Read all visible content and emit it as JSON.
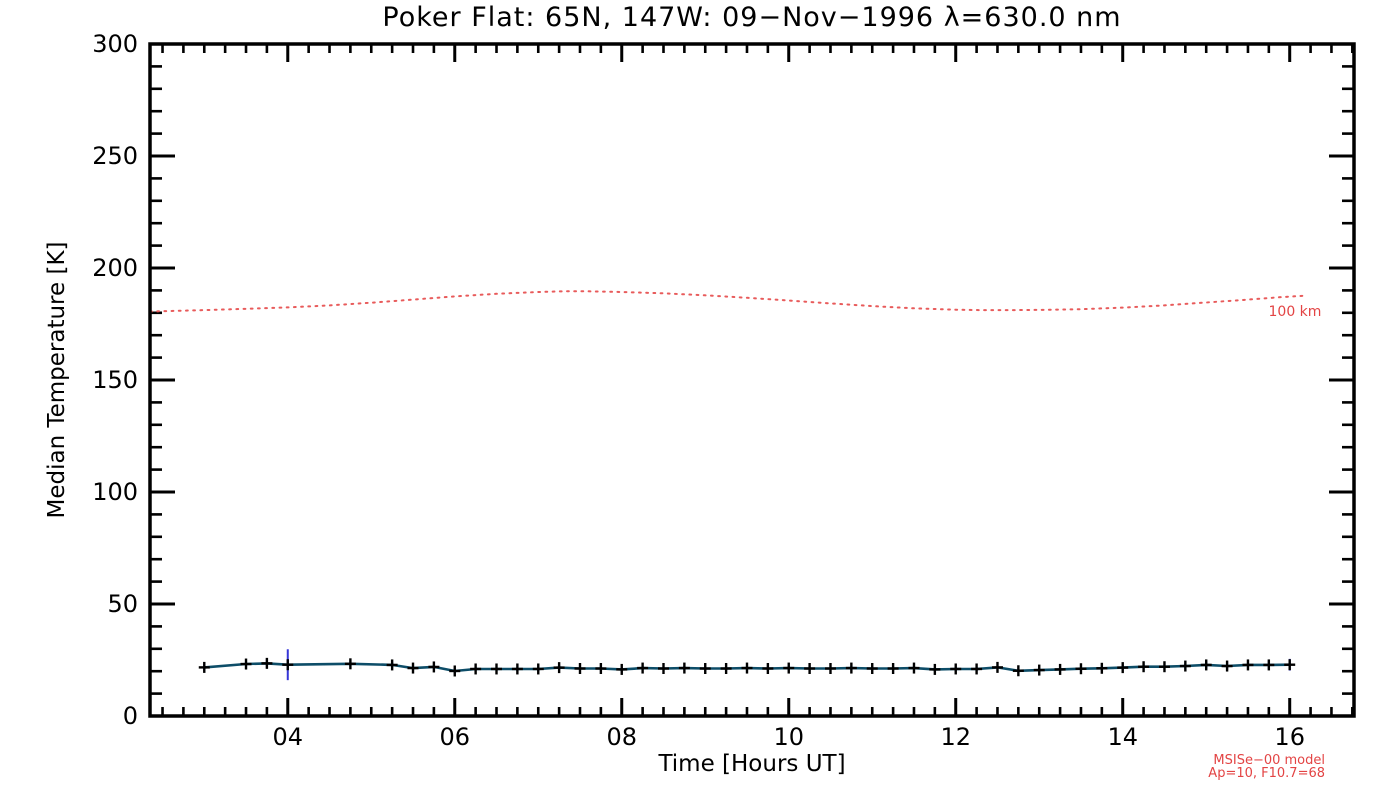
{
  "chart_data": {
    "type": "line",
    "title": "Poker Flat: 65N, 147W: 09−Nov−1996 λ=630.0 nm",
    "xlabel": "Time [Hours UT]",
    "ylabel": "Median Temperature [K]",
    "xlim": [
      2.35,
      16.77
    ],
    "ylim": [
      0,
      300
    ],
    "grid": false,
    "legend": "none",
    "x_axis": {
      "major_ticks": [
        4,
        6,
        8,
        10,
        12,
        14,
        16
      ],
      "major_labels": [
        "04",
        "06",
        "08",
        "10",
        "12",
        "14",
        "16"
      ],
      "minor_step": 0.25
    },
    "y_axis": {
      "major_ticks": [
        0,
        50,
        100,
        150,
        200,
        250,
        300
      ],
      "major_labels": [
        "0",
        "50",
        "100",
        "150",
        "200",
        "250",
        "300"
      ],
      "minor_step": 10
    },
    "series": [
      {
        "name": "measured-median-temperature",
        "style": "solid-line-plus-markers-error-bars",
        "line_color": "#0d4d68",
        "marker": "plus",
        "marker_color": "#000000",
        "error_bar_color": "#3636d8",
        "points_hour_temp_err": [
          [
            3.0,
            21.7,
            1.5
          ],
          [
            3.5,
            23.2,
            1.3
          ],
          [
            3.75,
            23.5,
            1.9
          ],
          [
            4.0,
            22.9,
            6.9
          ],
          [
            4.75,
            23.3,
            1.5
          ],
          [
            5.25,
            22.8,
            1.1
          ],
          [
            5.5,
            21.4,
            0.9
          ],
          [
            5.75,
            21.9,
            0.9
          ],
          [
            6.0,
            20.1,
            1.3
          ],
          [
            6.25,
            21.0,
            0.9
          ],
          [
            6.5,
            21.0,
            0.9
          ],
          [
            6.75,
            21.0,
            0.9
          ],
          [
            7.0,
            21.0,
            0.9
          ],
          [
            7.25,
            21.6,
            1.1
          ],
          [
            7.5,
            21.2,
            0.9
          ],
          [
            7.75,
            21.2,
            0.9
          ],
          [
            8.0,
            20.8,
            0.9
          ],
          [
            8.25,
            21.4,
            0.9
          ],
          [
            8.5,
            21.2,
            0.9
          ],
          [
            8.75,
            21.4,
            0.9
          ],
          [
            9.0,
            21.2,
            0.9
          ],
          [
            9.25,
            21.2,
            0.9
          ],
          [
            9.5,
            21.4,
            0.9
          ],
          [
            9.75,
            21.2,
            0.9
          ],
          [
            10.0,
            21.4,
            0.9
          ],
          [
            10.25,
            21.2,
            0.9
          ],
          [
            10.5,
            21.2,
            0.9
          ],
          [
            10.75,
            21.4,
            0.9
          ],
          [
            11.0,
            21.2,
            0.9
          ],
          [
            11.25,
            21.2,
            0.9
          ],
          [
            11.5,
            21.4,
            0.9
          ],
          [
            11.75,
            20.8,
            0.9
          ],
          [
            12.0,
            21.0,
            0.9
          ],
          [
            12.25,
            21.0,
            0.9
          ],
          [
            12.5,
            21.7,
            1.1
          ],
          [
            12.75,
            20.2,
            1.1
          ],
          [
            13.0,
            20.5,
            0.9
          ],
          [
            13.25,
            20.8,
            0.9
          ],
          [
            13.5,
            21.1,
            1.1
          ],
          [
            13.75,
            21.3,
            1.3
          ],
          [
            14.0,
            21.6,
            1.1
          ],
          [
            14.25,
            22.0,
            1.3
          ],
          [
            14.5,
            22.0,
            1.6
          ],
          [
            14.75,
            22.3,
            1.3
          ],
          [
            15.0,
            22.8,
            1.6
          ],
          [
            15.25,
            22.3,
            1.8
          ],
          [
            15.5,
            22.8,
            1.8
          ],
          [
            15.75,
            22.8,
            2.0
          ],
          [
            16.0,
            22.9,
            2.6
          ]
        ]
      },
      {
        "name": "msis-model-100km",
        "style": "dotted-line",
        "line_color": "#e85b5b",
        "label": "100 km",
        "points_hour_temp": [
          [
            2.35,
            180.6
          ],
          [
            3.0,
            181.2
          ],
          [
            3.5,
            181.8
          ],
          [
            4.0,
            182.4
          ],
          [
            4.5,
            183.3
          ],
          [
            5.0,
            184.5
          ],
          [
            5.5,
            185.9
          ],
          [
            6.0,
            187.3
          ],
          [
            6.5,
            188.5
          ],
          [
            7.0,
            189.3
          ],
          [
            7.3,
            189.6
          ],
          [
            7.6,
            189.6
          ],
          [
            8.0,
            189.3
          ],
          [
            8.5,
            188.7
          ],
          [
            9.0,
            187.8
          ],
          [
            9.5,
            186.7
          ],
          [
            10.0,
            185.5
          ],
          [
            10.5,
            184.2
          ],
          [
            11.0,
            183.0
          ],
          [
            11.5,
            182.0
          ],
          [
            12.0,
            181.4
          ],
          [
            12.3,
            181.2
          ],
          [
            12.7,
            181.2
          ],
          [
            13.0,
            181.3
          ],
          [
            13.5,
            181.6
          ],
          [
            14.0,
            182.3
          ],
          [
            14.5,
            183.3
          ],
          [
            15.0,
            184.6
          ],
          [
            15.5,
            185.9
          ],
          [
            15.9,
            187.0
          ],
          [
            16.16,
            187.6
          ]
        ]
      }
    ],
    "annotations": [
      {
        "text": "100 km",
        "hour": 16.38,
        "temp": 178.6,
        "anchor": "end",
        "color": "#e34444",
        "font_px": 14
      }
    ]
  },
  "footer": {
    "model_name": "MSISe−00 model",
    "model_params": "Ap=10, F10.7=68",
    "color": "#e34444"
  }
}
